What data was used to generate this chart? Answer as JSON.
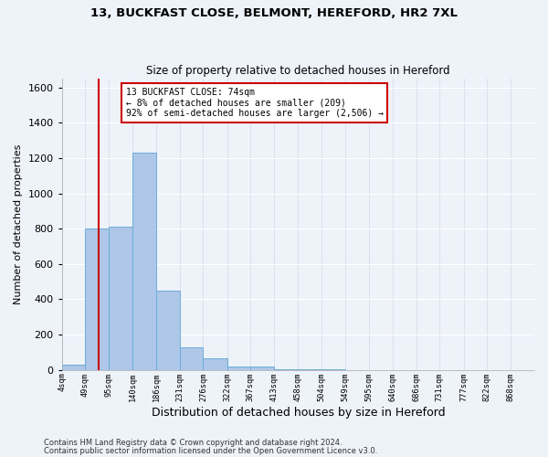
{
  "title1": "13, BUCKFAST CLOSE, BELMONT, HEREFORD, HR2 7XL",
  "title2": "Size of property relative to detached houses in Hereford",
  "xlabel": "Distribution of detached houses by size in Hereford",
  "ylabel": "Number of detached properties",
  "footer1": "Contains HM Land Registry data © Crown copyright and database right 2024.",
  "footer2": "Contains public sector information licensed under the Open Government Licence v3.0.",
  "annotation_line1": "13 BUCKFAST CLOSE: 74sqm",
  "annotation_line2": "← 8% of detached houses are smaller (209)",
  "annotation_line3": "92% of semi-detached houses are larger (2,506) →",
  "property_size": 74,
  "bar_edges": [
    4,
    49,
    95,
    140,
    186,
    231,
    276,
    322,
    367,
    413,
    458,
    504,
    549,
    595,
    640,
    686,
    731,
    777,
    822,
    868,
    913
  ],
  "bar_heights": [
    30,
    800,
    810,
    1230,
    450,
    130,
    65,
    20,
    18,
    4,
    5,
    1,
    0,
    0,
    0,
    0,
    0,
    0,
    0,
    0
  ],
  "bar_color": "#aec6e8",
  "bar_edge_color": "#6aaed6",
  "vline_color": "#cc0000",
  "vline_x": 74,
  "annotation_box_color": "#cc0000",
  "ylim": [
    0,
    1650
  ],
  "yticks": [
    0,
    200,
    400,
    600,
    800,
    1000,
    1200,
    1400,
    1600
  ],
  "background_color": "#eef2f9",
  "grid_color": "#ffffff"
}
